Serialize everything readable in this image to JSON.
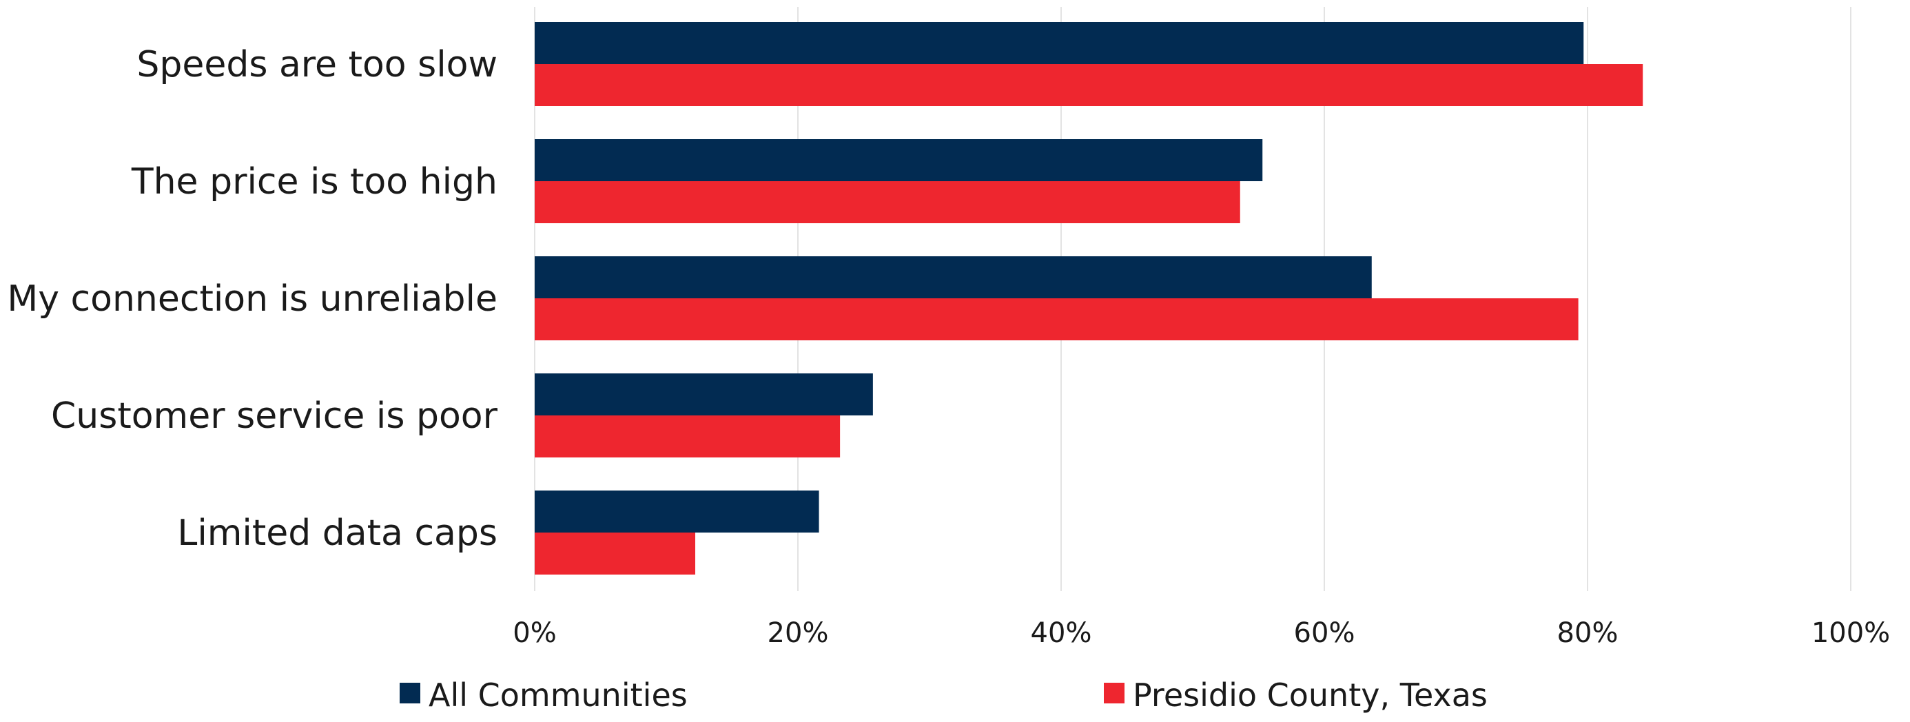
{
  "chart_data": {
    "type": "bar",
    "orientation": "horizontal",
    "categories": [
      "Speeds are too slow",
      "The price is too high",
      "My connection is unreliable",
      "Customer service is poor",
      "Limited data caps"
    ],
    "series": [
      {
        "name": "All Communities",
        "color": "#022b52",
        "values": [
          79.7,
          55.3,
          63.6,
          25.7,
          21.6
        ]
      },
      {
        "name": "Presidio County, Texas",
        "color": "#ee262f",
        "values": [
          84.2,
          53.6,
          79.3,
          23.2,
          12.2
        ]
      }
    ],
    "x_ticks": [
      "0%",
      "20%",
      "40%",
      "60%",
      "80%",
      "100%"
    ],
    "xlim": [
      0,
      100
    ],
    "grid": true,
    "legend_position": "bottom"
  }
}
